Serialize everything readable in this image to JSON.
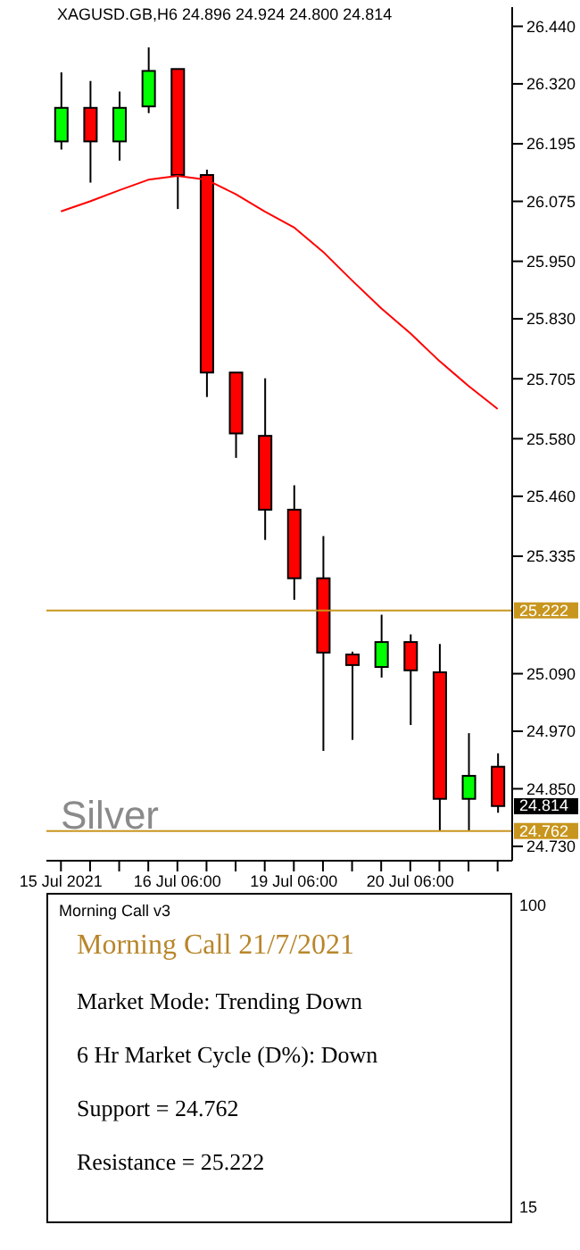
{
  "chart_data": [
    {
      "type": "candlestick",
      "title": "XAGUSD.GB,H6  24.896 24.924 24.800 24.814",
      "categories": [
        "15 Jul 2021",
        null,
        null,
        null,
        "16 Jul 06:00",
        null,
        null,
        null,
        "19 Jul 06:00",
        null,
        null,
        null,
        "20 Jul 06:00",
        null,
        null,
        null
      ],
      "ohlc": [
        [
          26.2,
          26.344,
          26.183,
          26.27
        ],
        [
          26.27,
          26.326,
          26.114,
          26.2
        ],
        [
          26.2,
          26.304,
          26.16,
          26.27
        ],
        [
          26.273,
          26.396,
          26.259,
          26.347
        ],
        [
          26.351,
          26.351,
          26.059,
          26.13
        ],
        [
          26.13,
          26.141,
          25.667,
          25.718
        ],
        [
          25.718,
          25.718,
          25.54,
          25.591
        ],
        [
          25.586,
          25.706,
          25.369,
          25.432
        ],
        [
          25.432,
          25.483,
          25.244,
          25.289
        ],
        [
          25.289,
          25.377,
          24.929,
          25.134
        ],
        [
          25.13,
          25.136,
          24.952,
          25.108
        ],
        [
          25.104,
          25.213,
          25.082,
          25.156
        ],
        [
          25.156,
          25.172,
          24.983,
          25.097
        ],
        [
          25.093,
          25.152,
          24.762,
          24.829
        ],
        [
          24.829,
          24.966,
          24.762,
          24.877
        ],
        [
          24.896,
          24.924,
          24.8,
          24.814
        ]
      ],
      "colors": [
        "#00ff00",
        "#ff0000",
        "#00ff00",
        "#00ff00",
        "#ff0000",
        "#ff0000",
        "#ff0000",
        "#ff0000",
        "#ff0000",
        "#ff0000",
        "#ff0000",
        "#00ff00",
        "#ff0000",
        "#ff0000",
        "#00ff00",
        "#ff0000"
      ],
      "series": [
        {
          "type": "line",
          "color": "#ff0000",
          "values": [
            26.054,
            26.075,
            26.098,
            26.12,
            26.128,
            26.12,
            26.09,
            26.054,
            26.021,
            25.97,
            25.91,
            25.852,
            25.8,
            25.742,
            25.69,
            25.642
          ]
        }
      ],
      "ylim": [
        24.7,
        26.48
      ],
      "yticks": [
        {
          "value": 26.44,
          "label": "26.440"
        },
        {
          "value": 26.32,
          "label": "26.320"
        },
        26.195,
        26.075,
        {
          "value": 25.95,
          "label": "25.950"
        },
        {
          "value": 25.83,
          "label": "25.830"
        },
        25.705,
        {
          "value": 25.58,
          "label": "25.580"
        },
        {
          "value": 25.46,
          "label": "25.460"
        },
        25.335,
        {
          "value": 25.09,
          "label": "25.090"
        },
        {
          "value": 24.97,
          "label": "24.970"
        },
        {
          "value": 24.85,
          "label": "24.850"
        },
        {
          "value": 24.73,
          "label": "24.730"
        }
      ],
      "ref_lines": [
        {
          "axis": "y",
          "value": 25.222,
          "label": "25.222",
          "color": "#c8961e"
        },
        {
          "axis": "y",
          "value": 24.762,
          "label": "24.762",
          "color": "#c8961e"
        }
      ],
      "annotations": [
        "Silver",
        "24.814"
      ],
      "grid": false
    },
    {
      "type": "other",
      "title": "Morning Call v3",
      "subtitle": "Morning Call 21/7/2021",
      "annotations": [
        "Market Mode: Trending Down",
        "6 Hr Market Cycle (D%): Down",
        "Support = 24.762",
        "Resistance = 25.222",
        "100",
        "15"
      ]
    }
  ]
}
